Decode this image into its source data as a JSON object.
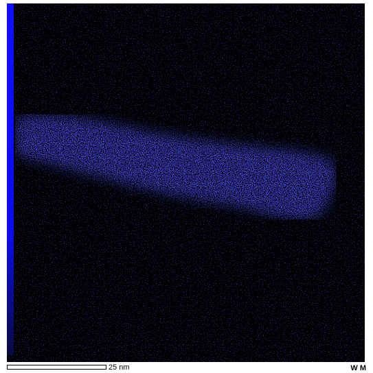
{
  "scale_bar": {
    "label": "25 nm"
  },
  "corner_label": "W M"
}
